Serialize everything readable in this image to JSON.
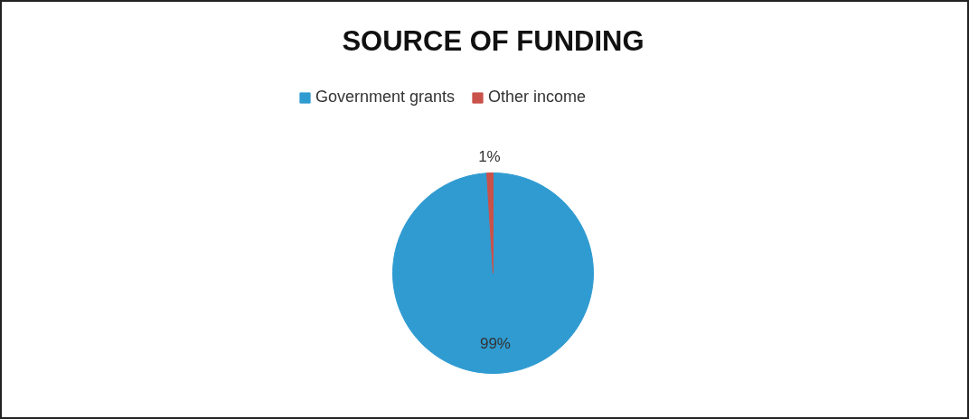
{
  "chart_data": {
    "type": "pie",
    "title": "SOURCE OF FUNDING",
    "categories": [
      "Government grants",
      "Other income"
    ],
    "values": [
      99,
      1
    ],
    "colors": [
      "#2f9bd1",
      "#c9524a"
    ],
    "value_labels": [
      "99%",
      "1%"
    ],
    "legend": "top"
  }
}
